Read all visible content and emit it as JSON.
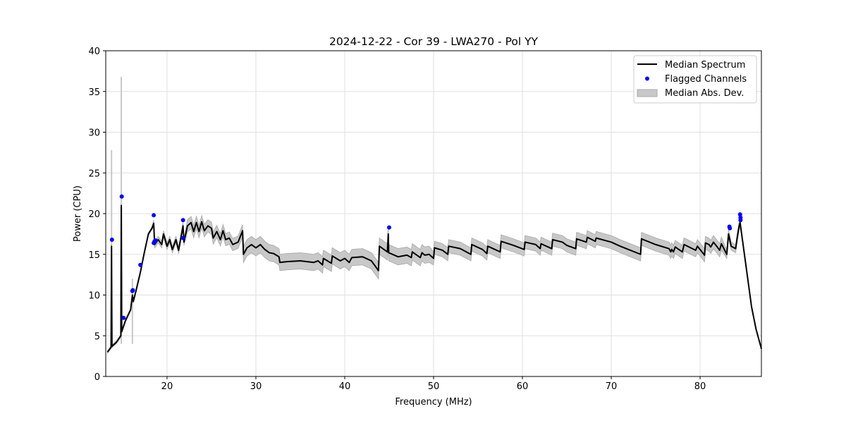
{
  "chart_data": {
    "type": "line",
    "title": "2024-12-22 - Cor 39 - LWA270 - Pol YY",
    "xlabel": "Frequency (MHz)",
    "ylabel": "Power (CPU)",
    "xlim": [
      13.1,
      86.9
    ],
    "ylim": [
      0,
      40
    ],
    "xticks": [
      20,
      30,
      40,
      50,
      60,
      70,
      80
    ],
    "yticks": [
      0,
      5,
      10,
      15,
      20,
      25,
      30,
      35,
      40
    ],
    "grid": true,
    "legend_placement": "top-right",
    "legend": [
      "Median Spectrum",
      "Flagged Channels",
      "Median Abs. Dev."
    ],
    "colors": {
      "median": "#000000",
      "flagged": "#0000ff",
      "mad": "#c8c8c8"
    },
    "median_spectrum": [
      [
        13.3,
        3.0
      ],
      [
        13.7,
        3.6
      ],
      [
        13.75,
        16.0
      ],
      [
        13.8,
        3.7
      ],
      [
        14.3,
        4.2
      ],
      [
        14.8,
        5.0
      ],
      [
        14.85,
        21.0
      ],
      [
        14.9,
        5.5
      ],
      [
        15.3,
        6.8
      ],
      [
        15.9,
        8.2
      ],
      [
        16.1,
        10.0
      ],
      [
        16.2,
        9.2
      ],
      [
        16.5,
        10.5
      ],
      [
        17.0,
        12.8
      ],
      [
        17.4,
        15.0
      ],
      [
        17.9,
        17.5
      ],
      [
        18.3,
        18.2
      ],
      [
        18.5,
        18.8
      ],
      [
        18.6,
        16.2
      ],
      [
        19.0,
        16.8
      ],
      [
        19.4,
        16.2
      ],
      [
        19.6,
        17.5
      ],
      [
        20.0,
        16.0
      ],
      [
        20.3,
        16.8
      ],
      [
        20.6,
        15.6
      ],
      [
        21.0,
        16.8
      ],
      [
        21.3,
        15.5
      ],
      [
        21.8,
        18.5
      ],
      [
        21.9,
        16.5
      ],
      [
        22.3,
        18.5
      ],
      [
        22.7,
        18.9
      ],
      [
        23.0,
        17.8
      ],
      [
        23.3,
        18.9
      ],
      [
        23.6,
        17.8
      ],
      [
        23.9,
        19.0
      ],
      [
        24.2,
        17.9
      ],
      [
        24.6,
        18.5
      ],
      [
        25.0,
        18.2
      ],
      [
        25.2,
        17.0
      ],
      [
        25.6,
        17.8
      ],
      [
        26.0,
        16.8
      ],
      [
        26.3,
        17.9
      ],
      [
        26.6,
        16.8
      ],
      [
        27.0,
        17.0
      ],
      [
        27.4,
        16.2
      ],
      [
        28.0,
        16.5
      ],
      [
        28.5,
        17.9
      ],
      [
        28.6,
        15.0
      ],
      [
        29.0,
        15.8
      ],
      [
        29.5,
        16.2
      ],
      [
        30.0,
        15.8
      ],
      [
        30.5,
        16.2
      ],
      [
        31.0,
        15.6
      ],
      [
        31.5,
        15.2
      ],
      [
        32.0,
        15.1
      ],
      [
        32.6,
        14.7
      ],
      [
        32.7,
        14.0
      ],
      [
        33.5,
        14.1
      ],
      [
        35.0,
        14.2
      ],
      [
        36.5,
        14.0
      ],
      [
        37.0,
        14.2
      ],
      [
        37.5,
        13.7
      ],
      [
        37.6,
        14.5
      ],
      [
        38.5,
        13.9
      ],
      [
        38.6,
        14.8
      ],
      [
        39.5,
        14.2
      ],
      [
        40.0,
        14.5
      ],
      [
        40.5,
        14.0
      ],
      [
        40.8,
        14.6
      ],
      [
        42.0,
        14.7
      ],
      [
        43.0,
        14.2
      ],
      [
        43.8,
        13.0
      ],
      [
        43.9,
        16.0
      ],
      [
        44.8,
        15.3
      ],
      [
        44.9,
        17.5
      ],
      [
        44.95,
        15.2
      ],
      [
        46.0,
        14.7
      ],
      [
        47.0,
        14.9
      ],
      [
        47.5,
        14.6
      ],
      [
        47.6,
        15.3
      ],
      [
        48.5,
        14.6
      ],
      [
        48.7,
        15.2
      ],
      [
        49.0,
        14.9
      ],
      [
        49.5,
        15.0
      ],
      [
        50.0,
        14.5
      ],
      [
        50.1,
        15.8
      ],
      [
        51.0,
        15.5
      ],
      [
        51.6,
        15.0
      ],
      [
        51.7,
        16.0
      ],
      [
        53.0,
        15.7
      ],
      [
        54.2,
        15.0
      ],
      [
        54.3,
        16.2
      ],
      [
        55.5,
        15.6
      ],
      [
        56.0,
        15.1
      ],
      [
        56.1,
        16.0
      ],
      [
        57.5,
        15.3
      ],
      [
        57.6,
        16.6
      ],
      [
        59.0,
        16.1
      ],
      [
        60.2,
        15.6
      ],
      [
        60.3,
        16.5
      ],
      [
        61.5,
        16.2
      ],
      [
        62.0,
        15.7
      ],
      [
        62.1,
        16.3
      ],
      [
        63.3,
        15.7
      ],
      [
        63.4,
        16.8
      ],
      [
        64.5,
        16.5
      ],
      [
        65.0,
        16.1
      ],
      [
        66.0,
        15.7
      ],
      [
        66.1,
        16.9
      ],
      [
        67.2,
        16.5
      ],
      [
        67.3,
        17.1
      ],
      [
        68.2,
        16.6
      ],
      [
        68.3,
        17.0
      ],
      [
        70.0,
        16.5
      ],
      [
        71.0,
        16.0
      ],
      [
        73.3,
        15.0
      ],
      [
        73.4,
        16.9
      ],
      [
        75.0,
        16.2
      ],
      [
        76.5,
        15.7
      ],
      [
        76.7,
        15.3
      ],
      [
        76.8,
        15.6
      ],
      [
        77.0,
        15.3
      ],
      [
        77.2,
        15.9
      ],
      [
        78.0,
        15.3
      ],
      [
        78.2,
        16.2
      ],
      [
        79.5,
        15.5
      ],
      [
        79.7,
        16.0
      ],
      [
        80.5,
        14.9
      ],
      [
        80.6,
        16.4
      ],
      [
        81.0,
        16.2
      ],
      [
        81.2,
        15.9
      ],
      [
        81.5,
        16.5
      ],
      [
        82.0,
        15.8
      ],
      [
        82.2,
        15.5
      ],
      [
        82.4,
        16.3
      ],
      [
        83.0,
        15.0
      ],
      [
        83.2,
        17.5
      ],
      [
        83.5,
        16.0
      ],
      [
        84.0,
        15.7
      ],
      [
        84.2,
        17.2
      ],
      [
        84.4,
        18.5
      ],
      [
        84.5,
        18.9
      ],
      [
        84.8,
        16.5
      ],
      [
        85.3,
        12.5
      ],
      [
        85.8,
        8.5
      ],
      [
        86.3,
        5.8
      ],
      [
        86.9,
        3.4
      ]
    ],
    "mad_spikes": [
      [
        13.75,
        27.8
      ],
      [
        14.85,
        36.8
      ],
      [
        16.1,
        12.0
      ]
    ],
    "flagged_channels": [
      [
        13.8,
        16.8
      ],
      [
        14.9,
        22.1
      ],
      [
        15.1,
        7.2
      ],
      [
        16.1,
        10.5
      ],
      [
        16.15,
        10.6
      ],
      [
        17.0,
        13.7
      ],
      [
        18.5,
        19.8
      ],
      [
        18.5,
        16.4
      ],
      [
        18.6,
        16.6
      ],
      [
        18.7,
        16.7
      ],
      [
        21.8,
        19.2
      ],
      [
        21.8,
        17.0
      ],
      [
        45.0,
        18.3
      ],
      [
        83.3,
        18.4
      ],
      [
        83.35,
        18.2
      ],
      [
        84.5,
        19.9
      ],
      [
        84.55,
        19.5
      ],
      [
        84.55,
        19.2
      ]
    ]
  }
}
